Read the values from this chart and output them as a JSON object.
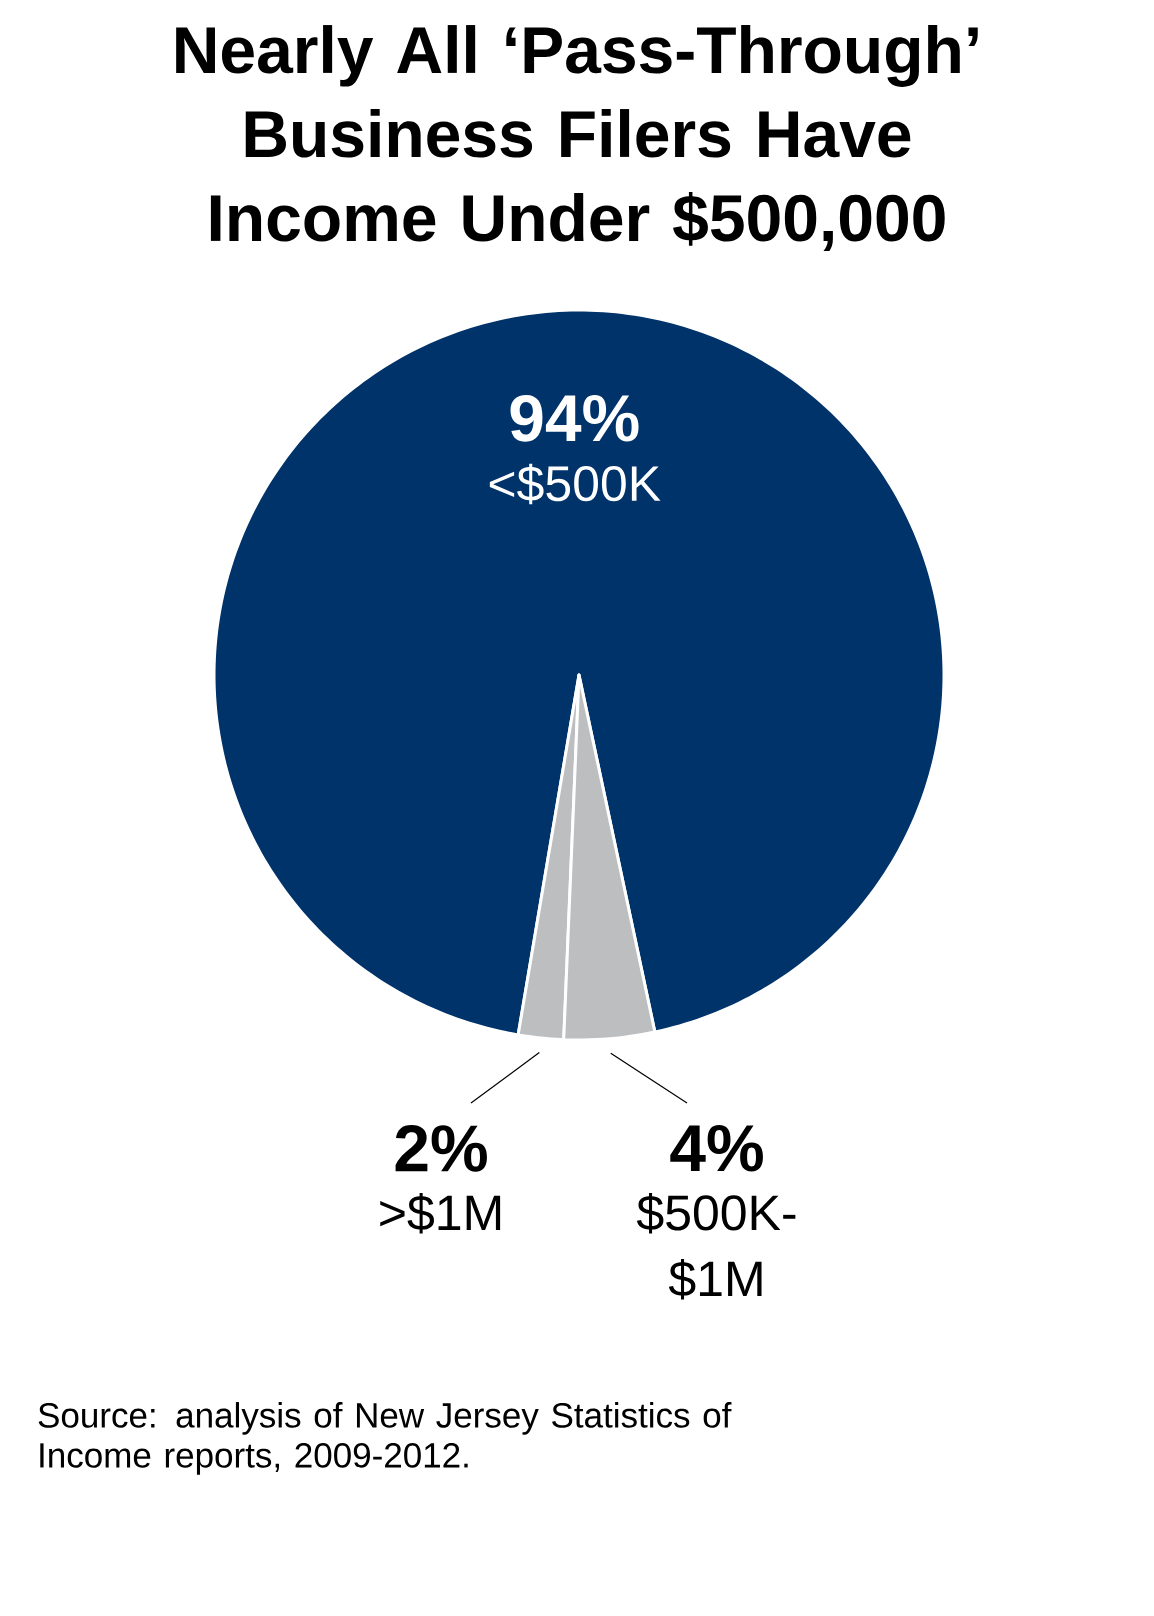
{
  "chart_data": {
    "type": "pie",
    "title": "Nearly All ‘Pass-Through’ Business Filers Have Income Under $500,000",
    "categories": [
      "<$500K",
      ">$1M",
      "$500K-$1M"
    ],
    "values": [
      94,
      2,
      4
    ],
    "colors": [
      "#00336a",
      "#bcbec0",
      "#bcbec0"
    ],
    "value_labels": [
      "94%",
      "2%",
      "4%"
    ],
    "annotations": [
      "Source: analysis of New Jersey Statistics of Income reports, 2009-2012."
    ]
  }
}
